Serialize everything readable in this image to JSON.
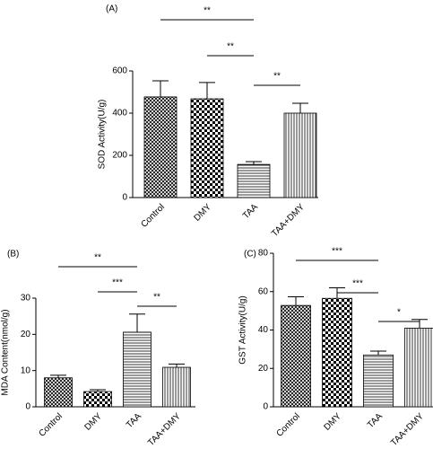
{
  "chart_data": [
    {
      "type": "bar",
      "title": "(A)",
      "y_label": "SOD Activity(U/g)",
      "categories": [
        "Control",
        "DMY",
        "TAA",
        "TAA+DMY"
      ],
      "values": [
        477,
        468,
        157,
        400
      ],
      "errors": [
        76,
        77,
        13,
        47
      ],
      "color": "#000000",
      "ylim": [
        0,
        600
      ],
      "yticks": [
        0,
        200,
        400,
        600
      ],
      "comparisons": [
        {
          "label": "**",
          "from": "Control",
          "to": "TAA"
        },
        {
          "label": "**",
          "from": "DMY",
          "to": "TAA"
        },
        {
          "label": "**",
          "from": "TAA",
          "to": "TAA+DMY"
        }
      ]
    },
    {
      "type": "bar",
      "title": "(B)",
      "y_label": "MDA Content(nmol/g)",
      "categories": [
        "Control",
        "DMY",
        "TAA",
        "TAA+DMY"
      ],
      "values": [
        8.0,
        4.2,
        20.6,
        10.9
      ],
      "errors": [
        0.7,
        0.5,
        5.0,
        0.9
      ],
      "color": "#000000",
      "ylim": [
        0,
        30
      ],
      "yticks": [
        0,
        10,
        20,
        30
      ],
      "comparisons": [
        {
          "label": "**",
          "from": "Control",
          "to": "TAA"
        },
        {
          "label": "***",
          "from": "DMY",
          "to": "TAA"
        },
        {
          "label": "**",
          "from": "TAA",
          "to": "TAA+DMY"
        }
      ]
    },
    {
      "type": "bar",
      "title": "(C)",
      "y_label": "GST Activity(U/g)",
      "categories": [
        "Control",
        "DMY",
        "TAA",
        "TAA+DMY"
      ],
      "values": [
        52.8,
        56.5,
        27,
        41
      ],
      "errors": [
        4.5,
        5.5,
        2,
        4.5
      ],
      "color": "#000000",
      "ylim": [
        0,
        80
      ],
      "yticks": [
        0,
        20,
        40,
        60,
        80
      ],
      "comparisons": [
        {
          "label": "***",
          "from": "Control",
          "to": "TAA"
        },
        {
          "label": "***",
          "from": "DMY",
          "to": "TAA"
        },
        {
          "label": "*",
          "from": "TAA",
          "to": "TAA+DMY"
        }
      ]
    }
  ]
}
